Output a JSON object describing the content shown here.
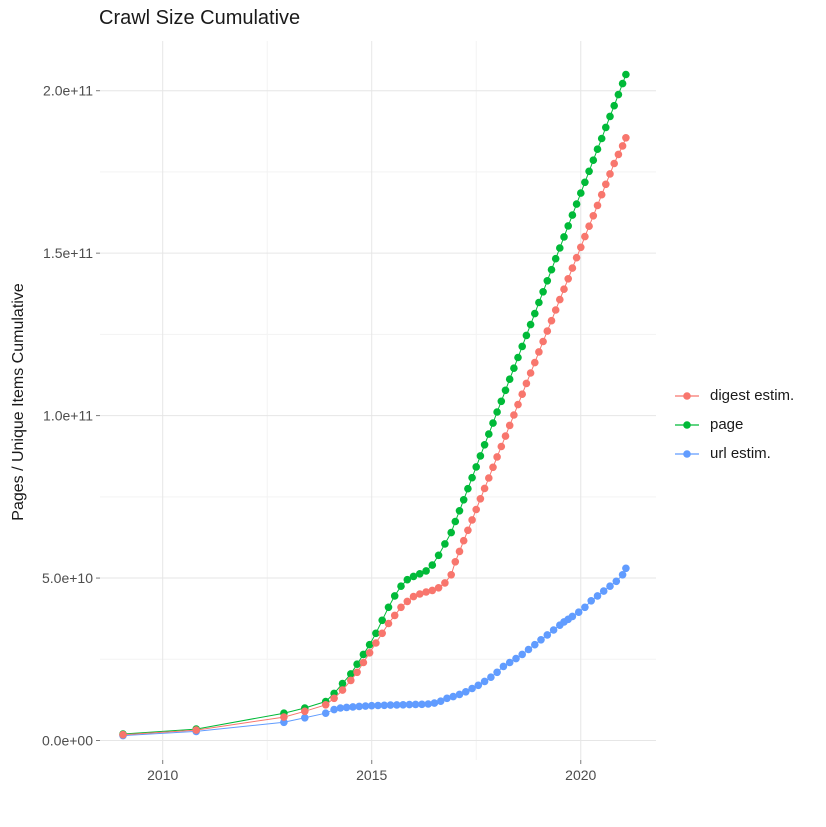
{
  "chart_data": {
    "type": "scatter",
    "title": "Crawl Size Cumulative",
    "xlabel": "",
    "ylabel": "Pages / Unique Items Cumulative",
    "grid": "on",
    "legend_position": "right",
    "xlim": [
      2008.5,
      2021.8
    ],
    "ylim_billions": [
      -6,
      215.3
    ],
    "x_ticks": [
      {
        "label": "2010",
        "value": 2010
      },
      {
        "label": "2015",
        "value": 2015
      },
      {
        "label": "2020",
        "value": 2020
      }
    ],
    "y_ticks": [
      {
        "label": "0.0e+00",
        "value": 0
      },
      {
        "label": "5.0e+10",
        "value": 50
      },
      {
        "label": "1.0e+11",
        "value": 100
      },
      {
        "label": "1.5e+11",
        "value": 150
      },
      {
        "label": "2.0e+11",
        "value": 200
      }
    ],
    "x_minor_gridlines": [
      2012.5,
      2017.5
    ],
    "y_minor_gridlines_billions": [
      25,
      75,
      125,
      175
    ],
    "grid_colors": {
      "major": "#e6e6e6",
      "minor": "#f3f3f3"
    },
    "y_unit": "billions (1e9) of pages / unique items",
    "series": [
      {
        "name": "digest estim.",
        "color": "#F8766D",
        "points": [
          [
            2009.05,
            1.8
          ],
          [
            2010.8,
            3.2
          ],
          [
            2012.9,
            7.2
          ],
          [
            2013.4,
            9
          ],
          [
            2013.9,
            11
          ],
          [
            2014.1,
            13
          ],
          [
            2014.3,
            15.5
          ],
          [
            2014.5,
            18.5
          ],
          [
            2014.65,
            21
          ],
          [
            2014.8,
            24
          ],
          [
            2014.95,
            27
          ],
          [
            2015.1,
            30
          ],
          [
            2015.25,
            33
          ],
          [
            2015.4,
            36
          ],
          [
            2015.55,
            38.5
          ],
          [
            2015.7,
            41
          ],
          [
            2015.85,
            42.8
          ],
          [
            2016.0,
            44.3
          ],
          [
            2016.15,
            45.1
          ],
          [
            2016.3,
            45.7
          ],
          [
            2016.45,
            46.2
          ],
          [
            2016.6,
            47
          ],
          [
            2016.75,
            48.5
          ],
          [
            2016.9,
            51
          ],
          [
            2017.0,
            55
          ],
          [
            2017.1,
            58.2
          ],
          [
            2017.2,
            61.5
          ],
          [
            2017.3,
            64.7
          ],
          [
            2017.4,
            67.9
          ],
          [
            2017.5,
            71.1
          ],
          [
            2017.6,
            74.4
          ],
          [
            2017.7,
            77.6
          ],
          [
            2017.8,
            80.8
          ],
          [
            2017.9,
            84.1
          ],
          [
            2018.0,
            87.3
          ],
          [
            2018.1,
            90.5
          ],
          [
            2018.2,
            93.7
          ],
          [
            2018.3,
            97
          ],
          [
            2018.4,
            100.2
          ],
          [
            2018.5,
            103.4
          ],
          [
            2018.6,
            106.6
          ],
          [
            2018.7,
            109.9
          ],
          [
            2018.8,
            113.1
          ],
          [
            2018.9,
            116.3
          ],
          [
            2019.0,
            119.6
          ],
          [
            2019.1,
            122.8
          ],
          [
            2019.2,
            126
          ],
          [
            2019.3,
            129.2
          ],
          [
            2019.4,
            132.5
          ],
          [
            2019.5,
            135.7
          ],
          [
            2019.6,
            138.9
          ],
          [
            2019.7,
            142.1
          ],
          [
            2019.8,
            145.4
          ],
          [
            2019.9,
            148.6
          ],
          [
            2020.0,
            151.8
          ],
          [
            2020.1,
            155.1
          ],
          [
            2020.2,
            158.3
          ],
          [
            2020.3,
            161.5
          ],
          [
            2020.4,
            164.7
          ],
          [
            2020.5,
            168
          ],
          [
            2020.6,
            171.2
          ],
          [
            2020.7,
            174.4
          ],
          [
            2020.8,
            177.6
          ],
          [
            2020.9,
            180.4
          ],
          [
            2021.0,
            183
          ],
          [
            2021.08,
            185.5
          ]
        ]
      },
      {
        "name": "page",
        "color": "#00BA38",
        "points": [
          [
            2009.05,
            2
          ],
          [
            2010.8,
            3.5
          ],
          [
            2012.9,
            8.4
          ],
          [
            2013.4,
            10
          ],
          [
            2013.9,
            12
          ],
          [
            2014.1,
            14.5
          ],
          [
            2014.3,
            17.5
          ],
          [
            2014.5,
            20.5
          ],
          [
            2014.65,
            23.5
          ],
          [
            2014.8,
            26.5
          ],
          [
            2014.95,
            29.5
          ],
          [
            2015.1,
            33
          ],
          [
            2015.25,
            37
          ],
          [
            2015.4,
            41
          ],
          [
            2015.55,
            44.5
          ],
          [
            2015.7,
            47.5
          ],
          [
            2015.85,
            49.5
          ],
          [
            2016.0,
            50.5
          ],
          [
            2016.15,
            51.3
          ],
          [
            2016.3,
            52.2
          ],
          [
            2016.45,
            54
          ],
          [
            2016.6,
            57
          ],
          [
            2016.75,
            60.5
          ],
          [
            2016.9,
            64
          ],
          [
            2017.0,
            67.4
          ],
          [
            2017.1,
            70.7
          ],
          [
            2017.2,
            74.1
          ],
          [
            2017.3,
            77.5
          ],
          [
            2017.4,
            80.9
          ],
          [
            2017.5,
            84.2
          ],
          [
            2017.6,
            87.6
          ],
          [
            2017.7,
            91
          ],
          [
            2017.8,
            94.3
          ],
          [
            2017.9,
            97.7
          ],
          [
            2018.0,
            101.1
          ],
          [
            2018.1,
            104.4
          ],
          [
            2018.2,
            107.8
          ],
          [
            2018.3,
            111.2
          ],
          [
            2018.4,
            114.6
          ],
          [
            2018.5,
            117.9
          ],
          [
            2018.6,
            121.3
          ],
          [
            2018.7,
            124.7
          ],
          [
            2018.8,
            128
          ],
          [
            2018.9,
            131.4
          ],
          [
            2019.0,
            134.8
          ],
          [
            2019.1,
            138.1
          ],
          [
            2019.2,
            141.5
          ],
          [
            2019.3,
            144.9
          ],
          [
            2019.4,
            148.3
          ],
          [
            2019.5,
            151.6
          ],
          [
            2019.6,
            155
          ],
          [
            2019.7,
            158.4
          ],
          [
            2019.8,
            161.7
          ],
          [
            2019.9,
            165.1
          ],
          [
            2020.0,
            168.5
          ],
          [
            2020.1,
            171.8
          ],
          [
            2020.2,
            175.2
          ],
          [
            2020.3,
            178.6
          ],
          [
            2020.4,
            182
          ],
          [
            2020.5,
            185.3
          ],
          [
            2020.6,
            188.7
          ],
          [
            2020.7,
            192.1
          ],
          [
            2020.8,
            195.4
          ],
          [
            2020.9,
            198.8
          ],
          [
            2021.0,
            202.2
          ],
          [
            2021.08,
            205
          ]
        ]
      },
      {
        "name": "url estim.",
        "color": "#619CFF",
        "points": [
          [
            2009.05,
            1.5
          ],
          [
            2010.8,
            2.8
          ],
          [
            2012.9,
            5.6
          ],
          [
            2013.4,
            7
          ],
          [
            2013.9,
            8.4
          ],
          [
            2014.1,
            9.5
          ],
          [
            2014.25,
            10
          ],
          [
            2014.4,
            10.2
          ],
          [
            2014.55,
            10.35
          ],
          [
            2014.7,
            10.5
          ],
          [
            2014.85,
            10.6
          ],
          [
            2015.0,
            10.7
          ],
          [
            2015.15,
            10.78
          ],
          [
            2015.3,
            10.85
          ],
          [
            2015.45,
            10.9
          ],
          [
            2015.6,
            10.95
          ],
          [
            2015.75,
            11
          ],
          [
            2015.9,
            11.05
          ],
          [
            2016.05,
            11.1
          ],
          [
            2016.2,
            11.15
          ],
          [
            2016.35,
            11.25
          ],
          [
            2016.5,
            11.5
          ],
          [
            2016.65,
            12.1
          ],
          [
            2016.8,
            13
          ],
          [
            2016.95,
            13.5
          ],
          [
            2017.1,
            14.2
          ],
          [
            2017.25,
            15
          ],
          [
            2017.4,
            16
          ],
          [
            2017.55,
            17
          ],
          [
            2017.7,
            18.2
          ],
          [
            2017.85,
            19.5
          ],
          [
            2018.0,
            21
          ],
          [
            2018.15,
            22.8
          ],
          [
            2018.3,
            24
          ],
          [
            2018.45,
            25.2
          ],
          [
            2018.6,
            26.5
          ],
          [
            2018.75,
            28
          ],
          [
            2018.9,
            29.5
          ],
          [
            2019.05,
            31
          ],
          [
            2019.2,
            32.5
          ],
          [
            2019.35,
            34
          ],
          [
            2019.5,
            35.5
          ],
          [
            2019.6,
            36.5
          ],
          [
            2019.7,
            37.3
          ],
          [
            2019.8,
            38.2
          ],
          [
            2019.95,
            39.5
          ],
          [
            2020.1,
            41
          ],
          [
            2020.25,
            43
          ],
          [
            2020.4,
            44.5
          ],
          [
            2020.55,
            46
          ],
          [
            2020.7,
            47.5
          ],
          [
            2020.85,
            49
          ],
          [
            2021.0,
            51
          ],
          [
            2021.08,
            53
          ]
        ]
      }
    ]
  }
}
